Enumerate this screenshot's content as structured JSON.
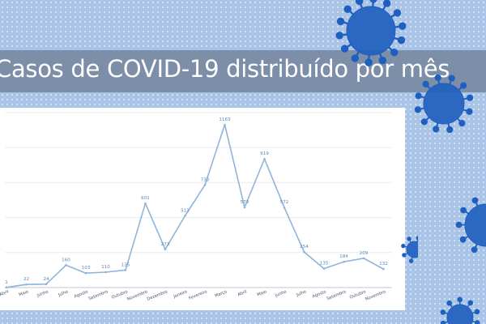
{
  "page_title": "Casos de COVID-19 distribuído por mês",
  "colors": {
    "background": "#a9c4e6",
    "title_band": "#7d8ea8",
    "line": "#8fb4dc",
    "label": "#5b86b8",
    "virus": "#1f5fbf"
  },
  "chart_data": {
    "type": "line",
    "title": "Casos de COVID-19 distribuído por mês",
    "xlabel": "",
    "ylabel": "",
    "categories": [
      "Abril",
      "Maio",
      "Junho",
      "Julho",
      "Agosto",
      "Setembro",
      "Outubro",
      "Novembro",
      "Dezembro",
      "Janeiro",
      "Fevereiro",
      "Março",
      "Abril",
      "Maio",
      "Junho",
      "Julho",
      "Agosto",
      "Setembro",
      "Outubro",
      "Novembro"
    ],
    "values": [
      1,
      22,
      24,
      160,
      103,
      110,
      125,
      601,
      273,
      513,
      733,
      1163,
      573,
      919,
      572,
      254,
      135,
      184,
      209,
      132
    ],
    "value_labels": [
      "1",
      "22",
      "24",
      "160",
      "103",
      "110",
      "125",
      "601",
      "273",
      "513",
      "733",
      "1163",
      "573",
      "919",
      "572",
      "254",
      "135",
      "184",
      "209",
      "132"
    ],
    "ylim": [
      0,
      1250
    ],
    "grid": true,
    "legend": "none"
  }
}
